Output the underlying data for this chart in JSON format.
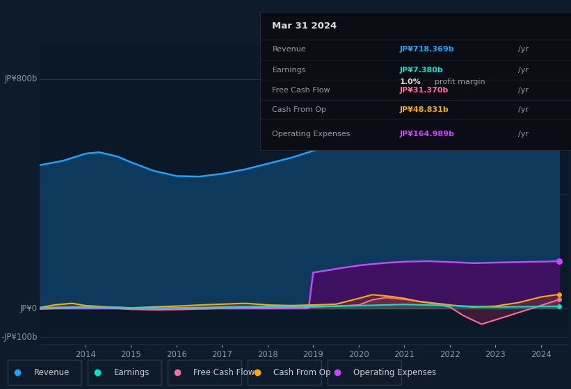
{
  "bg_color": "#0d1b2a",
  "plot_bg_color": "#0a1828",
  "grid_color": "#1e3a5a",
  "ylabel_800": "JP¥800b",
  "ylabel_0": "JP¥0",
  "ylabel_neg100": "-JP¥100b",
  "ylim": [
    -125,
    920
  ],
  "xlim_start": 2013.0,
  "xlim_end": 2024.6,
  "xticks": [
    2014,
    2015,
    2016,
    2017,
    2018,
    2019,
    2020,
    2021,
    2022,
    2023,
    2024
  ],
  "revenue_color": "#1aa3ff",
  "revenue_fill_color": "#0d3a5c",
  "earnings_color": "#00e5cc",
  "free_cashflow_color": "#ff6b9d",
  "cash_from_op_color": "#ffaa00",
  "op_expenses_color": "#cc44ff",
  "op_expenses_fill_color": "#3d1060",
  "title_box": {
    "date": "Mar 31 2024",
    "revenue_label": "Revenue",
    "revenue_value": "JP¥718.369b",
    "revenue_value_color": "#1aa3ff",
    "earnings_label": "Earnings",
    "earnings_value": "JP¥7.380b",
    "earnings_value_color": "#00e5cc",
    "profit_margin": "1.0%",
    "profit_margin_label": " profit margin",
    "fcf_label": "Free Cash Flow",
    "fcf_value": "JP¥31.370b",
    "fcf_value_color": "#ff6b9d",
    "cash_op_label": "Cash From Op",
    "cash_op_value": "JP¥48.831b",
    "cash_op_value_color": "#ffaa00",
    "op_exp_label": "Operating Expenses",
    "op_exp_value": "JP¥164.989b",
    "op_exp_value_color": "#cc44ff"
  },
  "legend": [
    {
      "label": "Revenue",
      "color": "#1aa3ff"
    },
    {
      "label": "Earnings",
      "color": "#00e5cc"
    },
    {
      "label": "Free Cash Flow",
      "color": "#ff6b9d"
    },
    {
      "label": "Cash From Op",
      "color": "#ffaa00"
    },
    {
      "label": "Operating Expenses",
      "color": "#cc44ff"
    }
  ]
}
